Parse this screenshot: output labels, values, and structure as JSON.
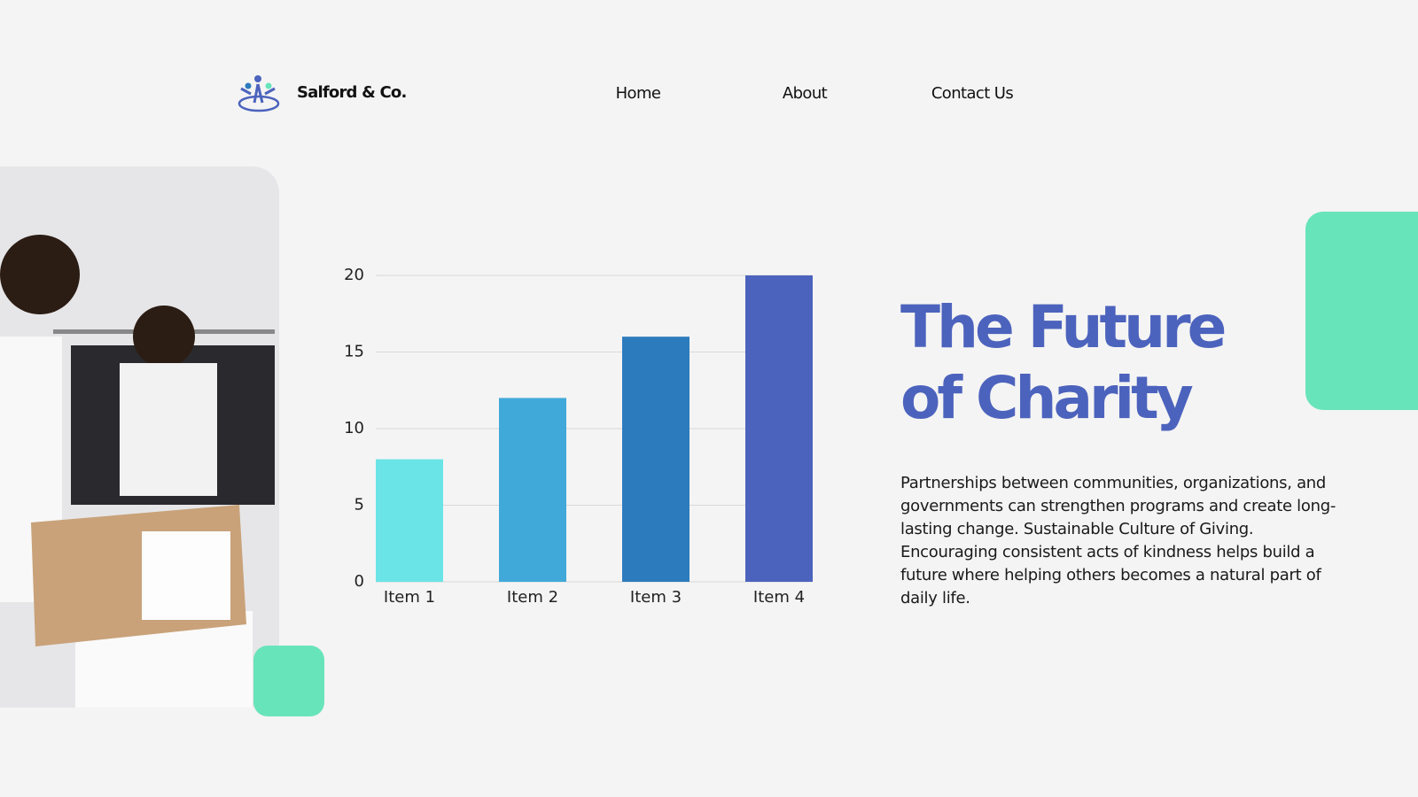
{
  "header": {
    "brand": "Salford & Co.",
    "nav": [
      "Home",
      "About",
      "Contact Us"
    ]
  },
  "chart_data": {
    "type": "bar",
    "categories": [
      "Item 1",
      "Item 2",
      "Item 3",
      "Item 4"
    ],
    "values": [
      8,
      12,
      16,
      20
    ],
    "colors": [
      "#6ae4e6",
      "#41a9d9",
      "#2c7bbd",
      "#4c63bd"
    ],
    "ylim": [
      0,
      20
    ],
    "yticks": [
      0,
      5,
      10,
      15,
      20
    ],
    "grid": true
  },
  "hero": {
    "title_lines": [
      "The Future",
      "of Charity"
    ],
    "body": "Partnerships between communities, organizations, and governments can strengthen programs and create long-lasting change. Sustainable Culture of Giving. Encouraging consistent acts of kindness helps build a future where helping others becomes a natural part of daily life."
  }
}
